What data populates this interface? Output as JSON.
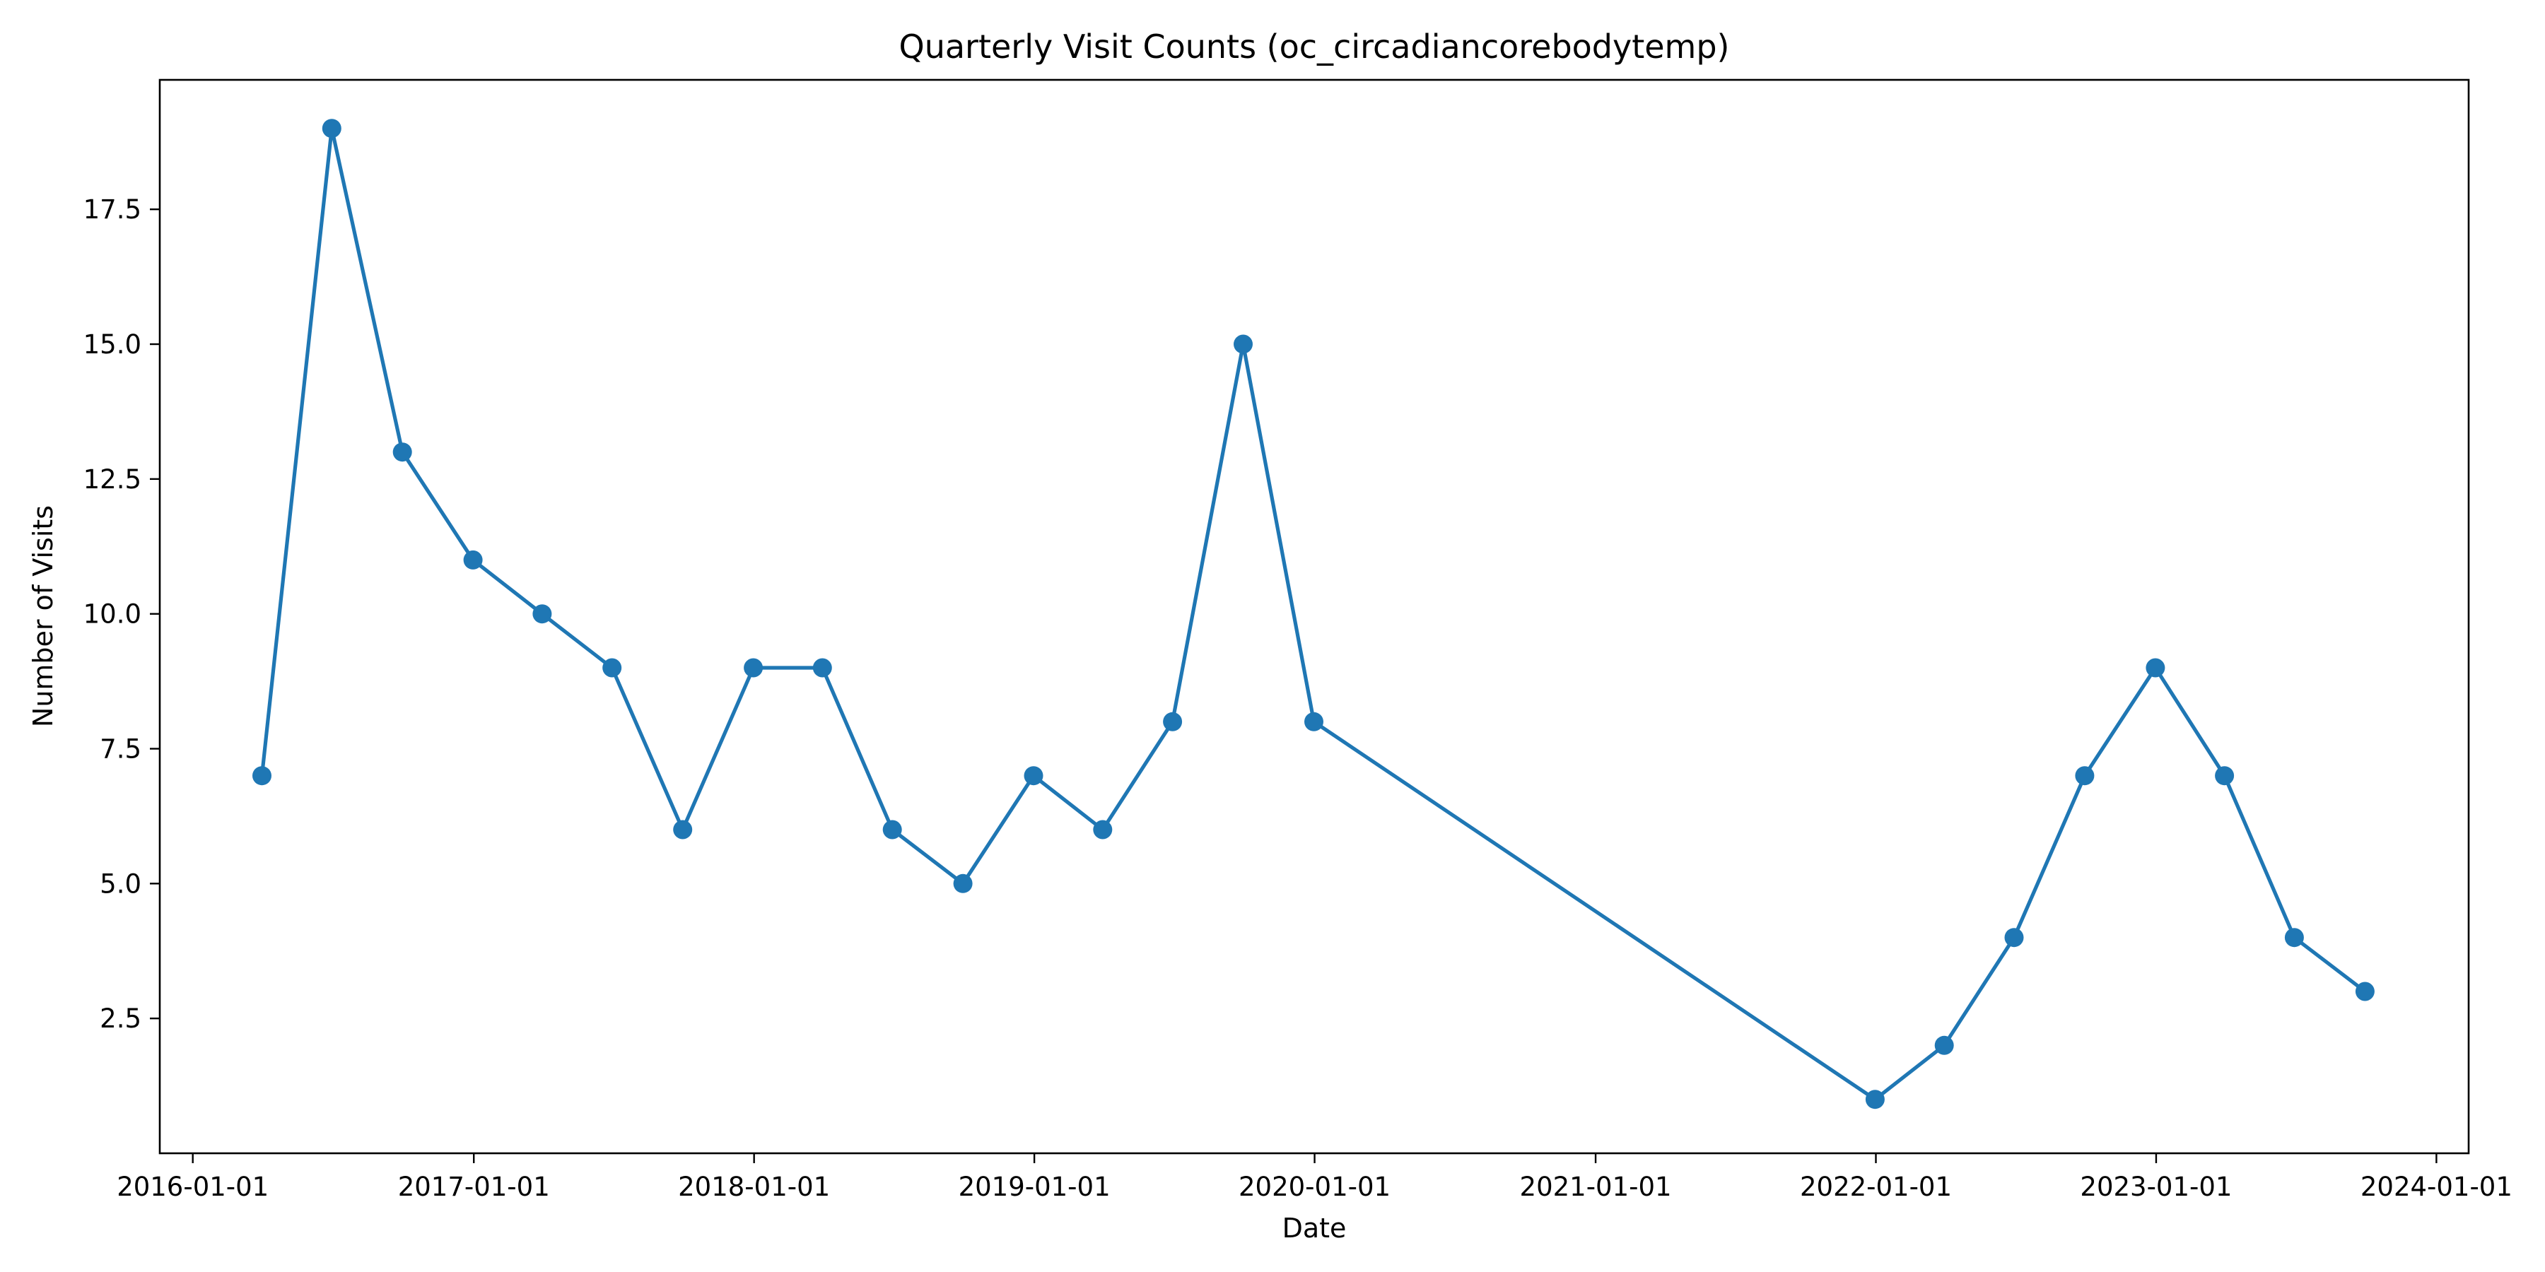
{
  "chart_data": {
    "type": "line",
    "title": "Quarterly Visit Counts (oc_circadiancorebodytemp)",
    "xlabel": "Date",
    "ylabel": "Number of Visits",
    "x_tick_labels": [
      "2016-01-01",
      "2017-01-01",
      "2018-01-01",
      "2019-01-01",
      "2020-01-01",
      "2021-01-01",
      "2022-01-01",
      "2023-01-01",
      "2024-01-01"
    ],
    "y_tick_labels": [
      "2.5",
      "5.0",
      "7.5",
      "10.0",
      "12.5",
      "15.0",
      "17.5"
    ],
    "xlim": [
      "2015-11-19",
      "2024-02-12"
    ],
    "ylim": [
      -0.0,
      19.9
    ],
    "grid": false,
    "series": [
      {
        "marker": "circle",
        "color": "#1f77b4",
        "x": [
          "2016-03-31",
          "2016-06-30",
          "2016-09-30",
          "2016-12-31",
          "2017-03-31",
          "2017-06-30",
          "2017-09-30",
          "2017-12-31",
          "2018-03-31",
          "2018-06-30",
          "2018-09-30",
          "2018-12-31",
          "2019-03-31",
          "2019-06-30",
          "2019-09-30",
          "2019-12-31",
          "2021-12-31",
          "2022-03-31",
          "2022-06-30",
          "2022-09-30",
          "2022-12-31",
          "2023-03-31",
          "2023-06-30",
          "2023-09-30"
        ],
        "values": [
          7,
          19,
          13,
          11,
          10,
          9,
          6,
          9,
          9,
          6,
          5,
          7,
          6,
          8,
          15,
          8,
          1,
          2,
          4,
          7,
          9,
          7,
          4,
          3
        ]
      }
    ]
  }
}
